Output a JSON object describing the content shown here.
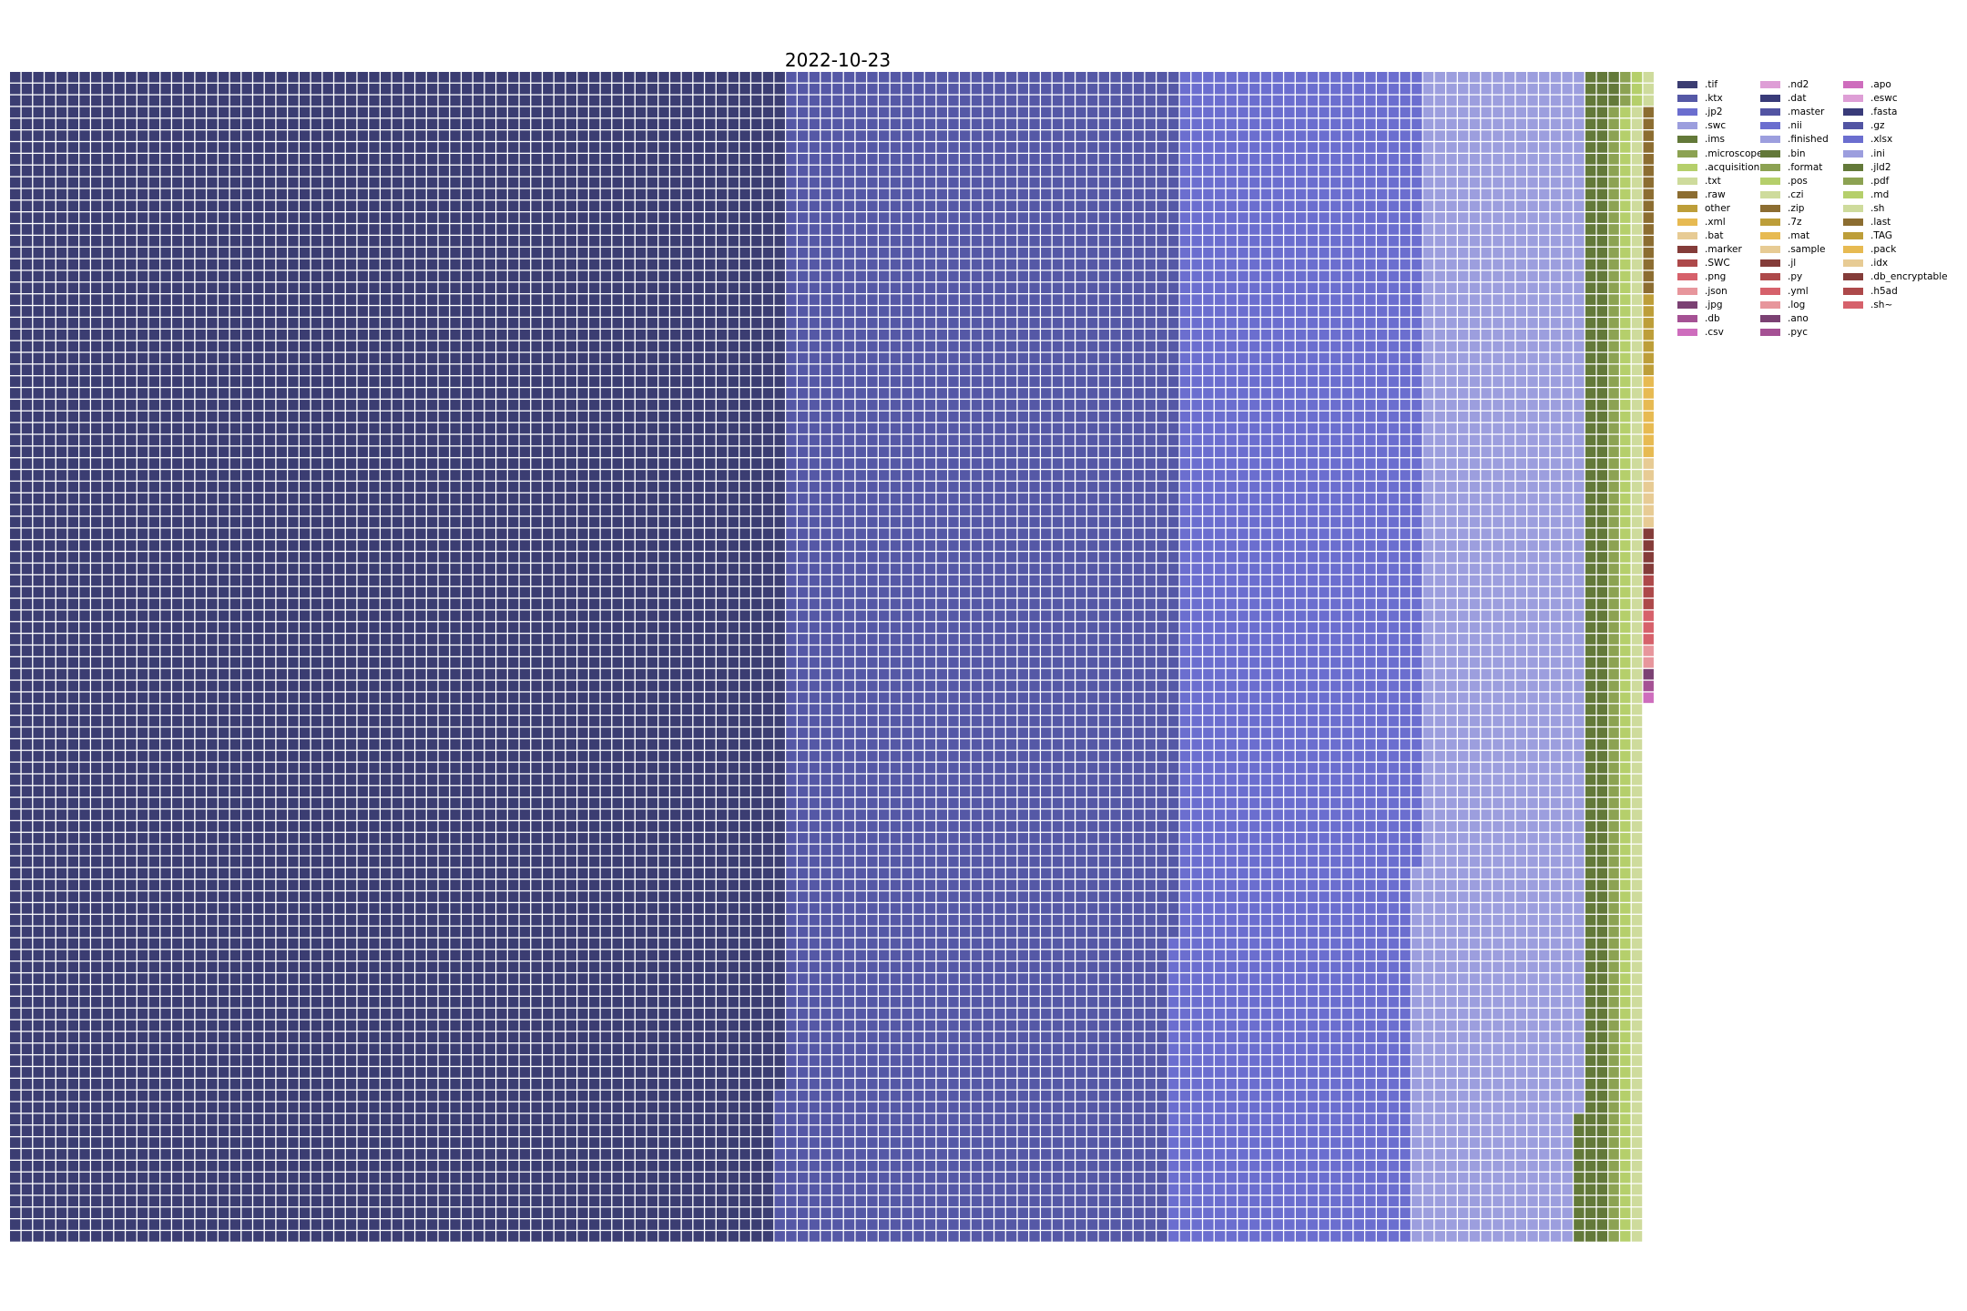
{
  "chart_data": {
    "type": "waffle",
    "title": "2022-10-23",
    "grid": {
      "rows": 100,
      "cols": 144
    },
    "series": [
      {
        "name": ".tif",
        "cells": 6687,
        "color": "#3b3d72"
      },
      {
        "name": ".ktx",
        "cells": 3387,
        "color": "#5558a6"
      },
      {
        "name": ".jp2",
        "cells": 2094,
        "color": "#6b6ecf"
      },
      {
        "name": ".swc",
        "cells": 1421,
        "color": "#9c9ede"
      },
      {
        "name": ".ims",
        "cells": 214,
        "color": "#637939"
      },
      {
        "name": ".microscope",
        "cells": 100,
        "color": "#8ca252"
      },
      {
        "name": ".acquisition",
        "cells": 100,
        "color": "#b5cf6b"
      },
      {
        "name": ".txt",
        "cells": 100,
        "color": "#cedb9c"
      },
      {
        "name": ".raw",
        "cells": 16,
        "color": "#8c6d31"
      },
      {
        "name": "other",
        "cells": 7,
        "color": "#bd9e39"
      },
      {
        "name": ".xml",
        "cells": 7,
        "color": "#e7ba52"
      },
      {
        "name": ".bat",
        "cells": 6,
        "color": "#e7cb94"
      },
      {
        "name": ".marker",
        "cells": 4,
        "color": "#843c39"
      },
      {
        "name": ".SWC",
        "cells": 3,
        "color": "#ad494a"
      },
      {
        "name": ".png",
        "cells": 3,
        "color": "#d6616b"
      },
      {
        "name": ".json",
        "cells": 2,
        "color": "#e7969c"
      },
      {
        "name": ".jpg",
        "cells": 1,
        "color": "#7b4173"
      },
      {
        "name": ".db",
        "cells": 1,
        "color": "#a55194"
      },
      {
        "name": ".csv",
        "cells": 1,
        "color": "#ce6dbd"
      },
      {
        "name": ".nd2",
        "cells": 0,
        "color": "#de9ed6"
      },
      {
        "name": ".dat",
        "cells": 0,
        "color": "#393b79"
      },
      {
        "name": ".master",
        "cells": 0,
        "color": "#5254a3"
      },
      {
        "name": ".nii",
        "cells": 0,
        "color": "#6b6ecf"
      },
      {
        "name": ".finished",
        "cells": 0,
        "color": "#9c9ede"
      },
      {
        "name": ".bin",
        "cells": 0,
        "color": "#637939"
      },
      {
        "name": ".format",
        "cells": 0,
        "color": "#8ca252"
      },
      {
        "name": ".pos",
        "cells": 0,
        "color": "#b5cf6b"
      },
      {
        "name": ".czi",
        "cells": 0,
        "color": "#cedb9c"
      },
      {
        "name": ".zip",
        "cells": 0,
        "color": "#8c6d31"
      },
      {
        "name": ".7z",
        "cells": 0,
        "color": "#bd9e39"
      },
      {
        "name": ".mat",
        "cells": 0,
        "color": "#e7ba52"
      },
      {
        "name": ".sample",
        "cells": 0,
        "color": "#e7cb94"
      },
      {
        "name": ".jl",
        "cells": 0,
        "color": "#843c39"
      },
      {
        "name": ".py",
        "cells": 0,
        "color": "#ad494a"
      },
      {
        "name": ".yml",
        "cells": 0,
        "color": "#d6616b"
      },
      {
        "name": ".log",
        "cells": 0,
        "color": "#e7969c"
      },
      {
        "name": ".ano",
        "cells": 0,
        "color": "#7b4173"
      },
      {
        "name": ".pyc",
        "cells": 0,
        "color": "#a55194"
      },
      {
        "name": ".apo",
        "cells": 0,
        "color": "#ce6dbd"
      },
      {
        "name": ".eswc",
        "cells": 0,
        "color": "#de9ed6"
      },
      {
        "name": ".fasta",
        "cells": 0,
        "color": "#393b79"
      },
      {
        "name": ".gz",
        "cells": 0,
        "color": "#5254a3"
      },
      {
        "name": ".xlsx",
        "cells": 0,
        "color": "#6b6ecf"
      },
      {
        "name": ".ini",
        "cells": 0,
        "color": "#9c9ede"
      },
      {
        "name": ".jld2",
        "cells": 0,
        "color": "#637939"
      },
      {
        "name": ".pdf",
        "cells": 0,
        "color": "#8ca252"
      },
      {
        "name": ".md",
        "cells": 0,
        "color": "#b5cf6b"
      },
      {
        "name": ".sh",
        "cells": 0,
        "color": "#cedb9c"
      },
      {
        "name": ".last",
        "cells": 0,
        "color": "#8c6d31"
      },
      {
        "name": ".TAG",
        "cells": 0,
        "color": "#bd9e39"
      },
      {
        "name": ".pack",
        "cells": 0,
        "color": "#e7ba52"
      },
      {
        "name": ".idx",
        "cells": 0,
        "color": "#e7cb94"
      },
      {
        "name": ".db_encryptable",
        "cells": 0,
        "color": "#843c39"
      },
      {
        "name": ".h5ad",
        "cells": 0,
        "color": "#ad494a"
      },
      {
        "name": ".sh~",
        "cells": 0,
        "color": "#d6616b"
      }
    ],
    "legend_placement": "right",
    "grid_lines": false
  }
}
